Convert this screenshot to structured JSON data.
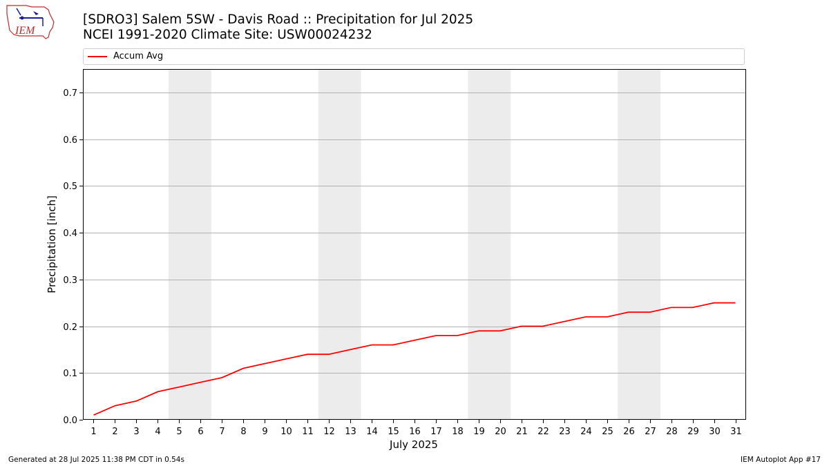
{
  "logo": {
    "text": "IEM"
  },
  "chart_data": {
    "type": "line",
    "title": "[SDRO3] Salem 5SW - Davis Road :: Precipitation for Jul 2025",
    "subtitle": "NCEI 1991-2020 Climate Site: USW00024232",
    "xlabel": "July 2025",
    "ylabel": "Precipitation [inch]",
    "ylim": [
      0,
      0.75
    ],
    "yticks": [
      "0.0",
      "0.1",
      "0.2",
      "0.3",
      "0.4",
      "0.5",
      "0.6",
      "0.7"
    ],
    "ytick_values": [
      0,
      0.1,
      0.2,
      0.3,
      0.4,
      0.5,
      0.6,
      0.7
    ],
    "x": [
      1,
      2,
      3,
      4,
      5,
      6,
      7,
      8,
      9,
      10,
      11,
      12,
      13,
      14,
      15,
      16,
      17,
      18,
      19,
      20,
      21,
      22,
      23,
      24,
      25,
      26,
      27,
      28,
      29,
      30,
      31
    ],
    "series": [
      {
        "name": "Accum Avg",
        "color": "#ff0000",
        "values": [
          0.01,
          0.03,
          0.04,
          0.06,
          0.07,
          0.08,
          0.09,
          0.11,
          0.12,
          0.13,
          0.14,
          0.14,
          0.15,
          0.16,
          0.16,
          0.17,
          0.18,
          0.18,
          0.19,
          0.19,
          0.2,
          0.2,
          0.21,
          0.22,
          0.22,
          0.23,
          0.23,
          0.24,
          0.24,
          0.25,
          0.25
        ]
      }
    ],
    "weekend_bands": [
      [
        5,
        6
      ],
      [
        12,
        13
      ],
      [
        19,
        20
      ],
      [
        26,
        27
      ]
    ],
    "band_color": "#ececec",
    "grid": "horizontal",
    "legend_placement": "top"
  },
  "footer": {
    "left": "Generated at 28 Jul 2025 11:38 PM CDT in 0.54s",
    "right": "IEM Autoplot App #17"
  }
}
